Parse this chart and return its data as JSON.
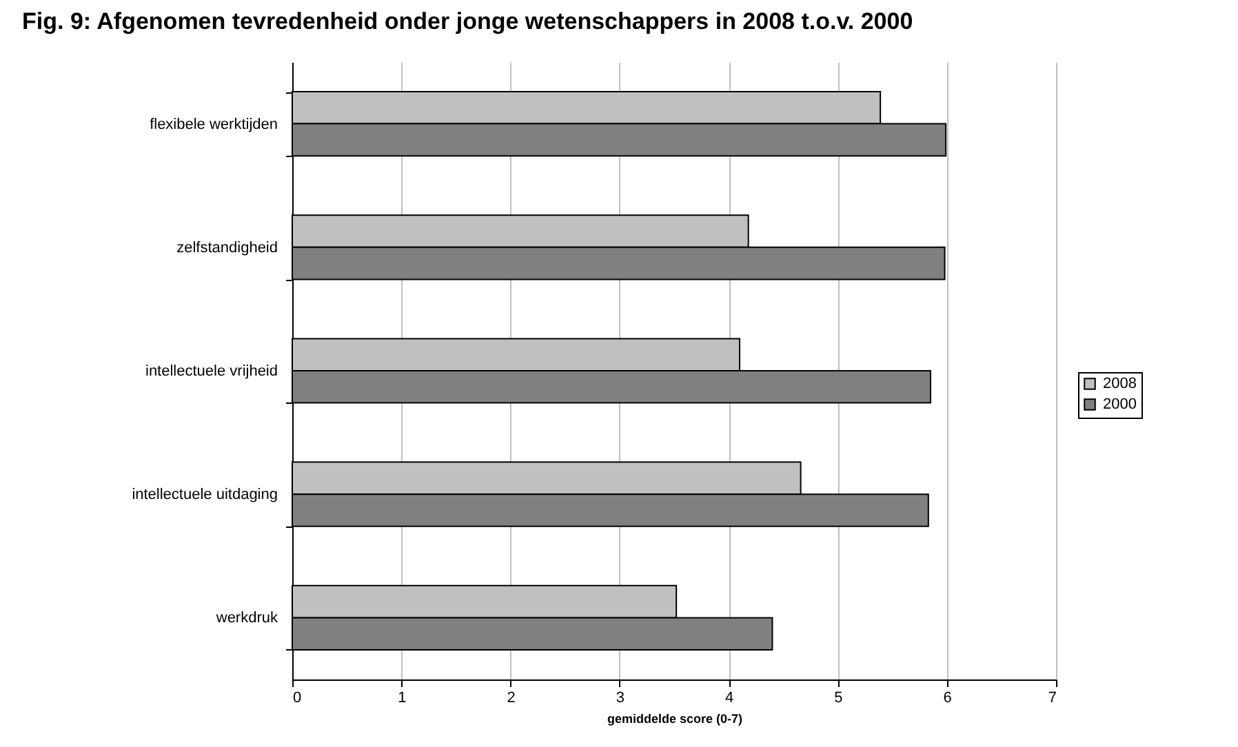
{
  "chart_data": {
    "type": "bar",
    "orientation": "horizontal",
    "title": "Fig. 9: Afgenomen tevredenheid onder jonge wetenschappers in 2008 t.o.v. 2000",
    "xlabel": "gemiddelde score (0-7)",
    "categories": [
      "flexibele werktijden",
      "zelfstandigheid",
      "intellectuele vrijheid",
      "intellectuele uitdaging",
      "werkdruk"
    ],
    "series": [
      {
        "name": "2008",
        "color": "#c0c0c0",
        "values": [
          5.39,
          4.18,
          4.1,
          4.66,
          3.52
        ]
      },
      {
        "name": "2000",
        "color": "#808080",
        "values": [
          5.99,
          5.98,
          5.85,
          5.83,
          4.4
        ]
      }
    ],
    "xlim": [
      0,
      7
    ],
    "xticks": [
      0,
      1,
      2,
      3,
      4,
      5,
      6,
      7
    ],
    "grid": "x",
    "legend": "right"
  }
}
